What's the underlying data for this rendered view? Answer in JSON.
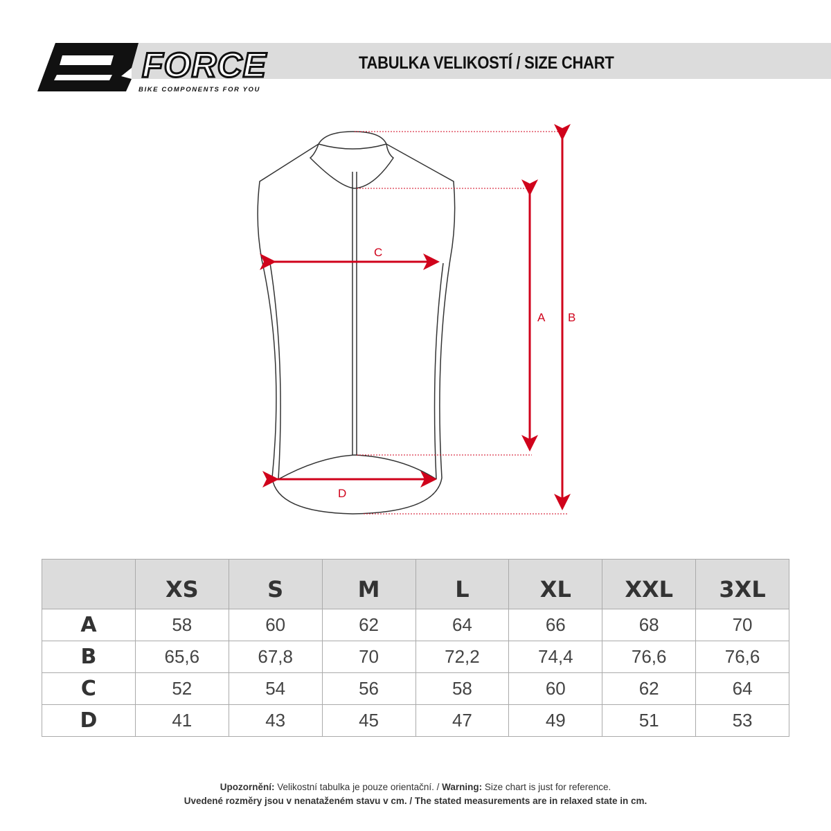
{
  "header": {
    "brand": "FORCE",
    "tagline": "BIKE COMPONENTS FOR YOU",
    "title": "TABULKA VELIKOSTÍ / SIZE CHART"
  },
  "diagram": {
    "labels": {
      "a": "A",
      "b": "B",
      "c": "C",
      "d": "D"
    },
    "arrow_color": "#d0021b"
  },
  "table": {
    "columns": [
      "XS",
      "S",
      "M",
      "L",
      "XL",
      "XXL",
      "3XL"
    ],
    "rows": [
      {
        "label": "A",
        "values": [
          "58",
          "60",
          "62",
          "64",
          "66",
          "68",
          "70"
        ]
      },
      {
        "label": "B",
        "values": [
          "65,6",
          "67,8",
          "70",
          "72,2",
          "74,4",
          "76,6",
          "76,6"
        ]
      },
      {
        "label": "C",
        "values": [
          "52",
          "54",
          "56",
          "58",
          "60",
          "62",
          "64"
        ]
      },
      {
        "label": "D",
        "values": [
          "41",
          "43",
          "45",
          "47",
          "49",
          "51",
          "53"
        ]
      }
    ]
  },
  "footer": {
    "line1_bold1": "Upozornění:",
    "line1_text1": " Velikostní tabulka je pouze orientační. / ",
    "line1_bold2": "Warning:",
    "line1_text2": " Size chart is just for reference.",
    "line2": "Uvedené rozměry jsou v nenataženém stavu v cm. / The stated measurements are in relaxed state in cm."
  }
}
